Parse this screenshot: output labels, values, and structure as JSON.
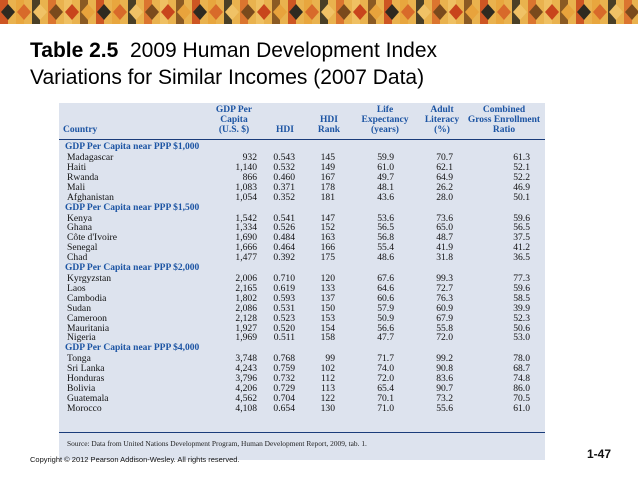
{
  "slide": {
    "title_bold": "Table 2.5",
    "title_rest": "  2009 Human Development Index",
    "title_line2": "Variations for Similar Incomes (2007 Data)",
    "copyright": "Copyright © 2012 Pearson Addison-Wesley. All rights reserved.",
    "page_number": "1-47"
  },
  "table": {
    "headers": {
      "country": [
        "Country"
      ],
      "gdp": [
        "GDP Per",
        "Capita",
        "(U.S. $)"
      ],
      "hdi": [
        "HDI"
      ],
      "rank": [
        "HDI",
        "Rank"
      ],
      "life": [
        "Life",
        "Expectancy",
        "(years)"
      ],
      "literacy": [
        "Adult",
        "Literacy",
        "(%)"
      ],
      "enroll": [
        "Combined",
        "Gross Enrollment",
        "Ratio"
      ]
    },
    "groups": [
      {
        "label": "GDP Per Capita near PPP $1,000",
        "rows": [
          [
            "Madagascar",
            "932",
            "0.543",
            "145",
            "59.9",
            "70.7",
            "61.3"
          ],
          [
            "Haiti",
            "1,140",
            "0.532",
            "149",
            "61.0",
            "62.1",
            "52.1"
          ],
          [
            "Rwanda",
            "866",
            "0.460",
            "167",
            "49.7",
            "64.9",
            "52.2"
          ],
          [
            "Mali",
            "1,083",
            "0.371",
            "178",
            "48.1",
            "26.2",
            "46.9"
          ],
          [
            "Afghanistan",
            "1,054",
            "0.352",
            "181",
            "43.6",
            "28.0",
            "50.1"
          ]
        ]
      },
      {
        "label": "GDP Per Capita near PPP $1,500",
        "rows": [
          [
            "Kenya",
            "1,542",
            "0.541",
            "147",
            "53.6",
            "73.6",
            "59.6"
          ],
          [
            "Ghana",
            "1,334",
            "0.526",
            "152",
            "56.5",
            "65.0",
            "56.5"
          ],
          [
            "Côte d'Ivoire",
            "1,690",
            "0.484",
            "163",
            "56.8",
            "48.7",
            "37.5"
          ],
          [
            "Senegal",
            "1,666",
            "0.464",
            "166",
            "55.4",
            "41.9",
            "41.2"
          ],
          [
            "Chad",
            "1,477",
            "0.392",
            "175",
            "48.6",
            "31.8",
            "36.5"
          ]
        ]
      },
      {
        "label": "GDP Per Capita near PPP $2,000",
        "rows": [
          [
            "Kyrgyzstan",
            "2,006",
            "0.710",
            "120",
            "67.6",
            "99.3",
            "77.3"
          ],
          [
            "Laos",
            "2,165",
            "0.619",
            "133",
            "64.6",
            "72.7",
            "59.6"
          ],
          [
            "Cambodia",
            "1,802",
            "0.593",
            "137",
            "60.6",
            "76.3",
            "58.5"
          ],
          [
            "Sudan",
            "2,086",
            "0.531",
            "150",
            "57.9",
            "60.9",
            "39.9"
          ],
          [
            "Cameroon",
            "2,128",
            "0.523",
            "153",
            "50.9",
            "67.9",
            "52.3"
          ],
          [
            "Mauritania",
            "1,927",
            "0.520",
            "154",
            "56.6",
            "55.8",
            "50.6"
          ],
          [
            "Nigeria",
            "1,969",
            "0.511",
            "158",
            "47.7",
            "72.0",
            "53.0"
          ]
        ]
      },
      {
        "label": "GDP Per Capita near PPP $4,000",
        "rows": [
          [
            "Tonga",
            "3,748",
            "0.768",
            "99",
            "71.7",
            "99.2",
            "78.0"
          ],
          [
            "Sri Lanka",
            "4,243",
            "0.759",
            "102",
            "74.0",
            "90.8",
            "68.7"
          ],
          [
            "Honduras",
            "3,796",
            "0.732",
            "112",
            "72.0",
            "83.6",
            "74.8"
          ],
          [
            "Bolivia",
            "4,206",
            "0.729",
            "113",
            "65.4",
            "90.7",
            "86.0"
          ],
          [
            "Guatemala",
            "4,562",
            "0.704",
            "122",
            "70.1",
            "73.2",
            "70.5"
          ],
          [
            "Morocco",
            "4,108",
            "0.654",
            "130",
            "71.0",
            "55.6",
            "61.0"
          ]
        ]
      }
    ],
    "source": "Source: Data from United Nations Development Program, Human Development Report, 2009, tab. 1."
  }
}
